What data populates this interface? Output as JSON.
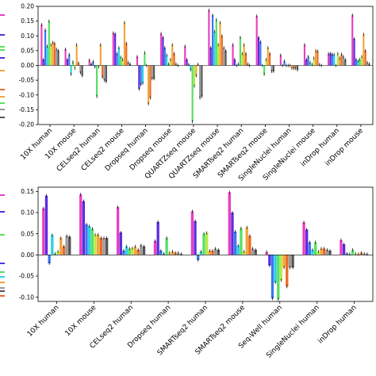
{
  "colors": [
    "#e83fc4",
    "#5b2de0",
    "#3b78f0",
    "#2fcfe0",
    "#57e063",
    "#b9e84a",
    "#f2a53a",
    "#ee6a26",
    "#9a9a9a",
    "#555555"
  ],
  "chart_data": [
    {
      "type": "bar",
      "ylim": [
        -0.2,
        0.2
      ],
      "yticks": [
        "0.20",
        "0.15",
        "0.10",
        "0.05",
        "0.00",
        "-0.05",
        "-0.10",
        "-0.15",
        "-0.20"
      ],
      "yticks_values": [
        0.2,
        0.15,
        0.1,
        0.05,
        0.0,
        -0.05,
        -0.1,
        -0.15,
        -0.2
      ],
      "categories": [
        "10X human",
        "10X mouse",
        "CELseq2 human",
        "CELseq2 mouse",
        "Dropseq human",
        "Dropseq mouse",
        "QUARTZseq mouse",
        "QUARTZseq mouse",
        "SMARTseq2 human",
        "SMARTseq2 mouse",
        "SingleNuclei human",
        "SingleNuclei mouse",
        "inDrop human",
        "inDrop mouse"
      ],
      "series": [
        {
          "values": [
            0.138,
            0.055,
            0.018,
            0.11,
            0.03,
            0.108,
            0.065,
            0.187,
            0.07,
            0.167,
            0.035,
            0.07,
            0.04,
            0.17
          ]
        },
        {
          "values": [
            0.02,
            0.02,
            0.005,
            0.107,
            -0.08,
            0.095,
            0.02,
            0.06,
            0.02,
            0.095,
            0.0,
            0.02,
            0.04,
            0.09
          ]
        },
        {
          "values": [
            0.12,
            0.037,
            0.013,
            0.04,
            -0.065,
            0.06,
            0.003,
            0.17,
            0.0,
            0.08,
            0.015,
            0.03,
            0.038,
            0.02
          ]
        },
        {
          "values": [
            0.065,
            -0.03,
            -0.005,
            0.06,
            -0.06,
            0.035,
            -0.015,
            0.115,
            0.005,
            0.0,
            0.0,
            0.01,
            0.037,
            0.015
          ]
        },
        {
          "values": [
            0.15,
            0.012,
            -0.105,
            0.028,
            0.043,
            0.005,
            -0.19,
            0.155,
            0.095,
            -0.03,
            0.0,
            0.003,
            0.0,
            0.02
          ]
        },
        {
          "values": [
            0.07,
            -0.01,
            -0.005,
            0.02,
            0.0,
            0.02,
            -0.07,
            0.07,
            0.04,
            0.02,
            0.0,
            0.025,
            0.04,
            0.03
          ]
        },
        {
          "values": [
            0.078,
            0.07,
            0.07,
            0.145,
            -0.13,
            0.07,
            -0.035,
            0.145,
            0.07,
            0.06,
            -0.01,
            0.05,
            0.025,
            0.105
          ]
        },
        {
          "values": [
            0.075,
            0.008,
            -0.04,
            0.075,
            -0.11,
            0.04,
            0.004,
            0.1,
            0.04,
            0.04,
            -0.01,
            0.048,
            0.038,
            0.05
          ]
        },
        {
          "values": [
            0.055,
            -0.025,
            -0.05,
            0.01,
            -0.045,
            0.005,
            -0.11,
            0.06,
            0.005,
            -0.02,
            -0.01,
            0.003,
            0.03,
            0.01
          ]
        },
        {
          "values": [
            0.05,
            -0.035,
            -0.055,
            0.005,
            -0.045,
            0.0,
            -0.105,
            0.05,
            0.0,
            -0.02,
            -0.015,
            0.0,
            0.02,
            0.005
          ]
        }
      ]
    },
    {
      "type": "bar",
      "ylim": [
        -0.11,
        0.16
      ],
      "yticks": [
        "0.15",
        "0.10",
        "0.05",
        "0.00",
        "-0.05",
        "-0.10"
      ],
      "yticks_values": [
        0.15,
        0.1,
        0.05,
        0.0,
        -0.05,
        -0.1
      ],
      "categories": [
        "10X human",
        "10X mouse",
        "CELseq2 human",
        "Dropseq human",
        "SMARTseq2 human",
        "SMARTseq2 mouse",
        "Seq-Well human",
        "SingleNuclei human",
        "inDrop human"
      ],
      "series": [
        {
          "values": [
            0.11,
            0.143,
            0.113,
            0.033,
            0.103,
            0.148,
            0.007,
            0.077,
            0.035
          ]
        },
        {
          "values": [
            0.14,
            0.127,
            0.053,
            0.078,
            0.08,
            0.1,
            -0.025,
            0.06,
            0.025
          ]
        },
        {
          "values": [
            -0.02,
            0.072,
            0.01,
            0.01,
            -0.012,
            0.055,
            -0.103,
            0.03,
            0.003
          ]
        },
        {
          "values": [
            0.047,
            0.068,
            0.02,
            0.003,
            0.008,
            0.022,
            -0.065,
            0.012,
            0.002
          ]
        },
        {
          "values": [
            0.003,
            0.062,
            0.015,
            0.04,
            0.05,
            0.063,
            -0.105,
            0.03,
            0.012
          ]
        },
        {
          "values": [
            0.008,
            0.048,
            0.016,
            0.005,
            0.052,
            0.008,
            -0.06,
            0.008,
            0.003
          ]
        },
        {
          "values": [
            0.04,
            0.048,
            0.02,
            0.008,
            0.01,
            0.065,
            -0.03,
            0.015,
            0.002
          ]
        },
        {
          "values": [
            0.02,
            0.04,
            0.012,
            0.005,
            0.01,
            0.045,
            -0.075,
            0.015,
            0.005
          ]
        },
        {
          "values": [
            0.045,
            0.04,
            0.023,
            0.005,
            0.015,
            0.015,
            -0.03,
            0.012,
            0.003
          ]
        },
        {
          "values": [
            0.043,
            0.04,
            0.02,
            0.002,
            0.012,
            0.012,
            -0.03,
            0.01,
            0.002
          ]
        }
      ]
    }
  ]
}
